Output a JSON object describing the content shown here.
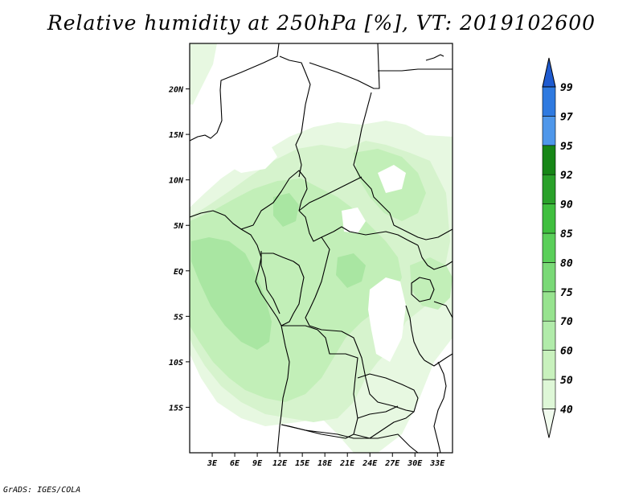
{
  "title": "Relative humidity at 250hPa [%], VT: 2019102600",
  "credit": "GrADS: IGES/COLA",
  "map": {
    "lat_labels": [
      "20N",
      "15N",
      "10N",
      "5N",
      "EQ",
      "5S",
      "10S",
      "15S"
    ],
    "lon_labels": [
      "3E",
      "6E",
      "9E",
      "12E",
      "15E",
      "18E",
      "21E",
      "24E",
      "27E",
      "30E",
      "33E"
    ],
    "lat_values": [
      20,
      15,
      10,
      5,
      0,
      -5,
      -10,
      -15
    ],
    "lon_values": [
      3,
      6,
      9,
      12,
      15,
      18,
      21,
      24,
      27,
      30,
      33
    ],
    "lon_range": [
      0,
      35
    ],
    "lat_range": [
      -20,
      25
    ]
  },
  "colorbar": {
    "labels": [
      "40",
      "50",
      "60",
      "70",
      "75",
      "80",
      "85",
      "90",
      "92",
      "95",
      "97",
      "99"
    ],
    "colors": [
      "#f1fbee",
      "#def7d7",
      "#c8f1bd",
      "#b1ebaa",
      "#97e38f",
      "#7ad977",
      "#5bcf5a",
      "#40bf3f",
      "#2aa12a",
      "#178617",
      "#4f97ea",
      "#2f7ae0",
      "#1f5bd0"
    ]
  },
  "field_colors": {
    "rh40": "#e7f8e1",
    "rh50": "#d6f3cd",
    "rh60": "#c2efb8",
    "rh70": "#a9e6a2"
  }
}
